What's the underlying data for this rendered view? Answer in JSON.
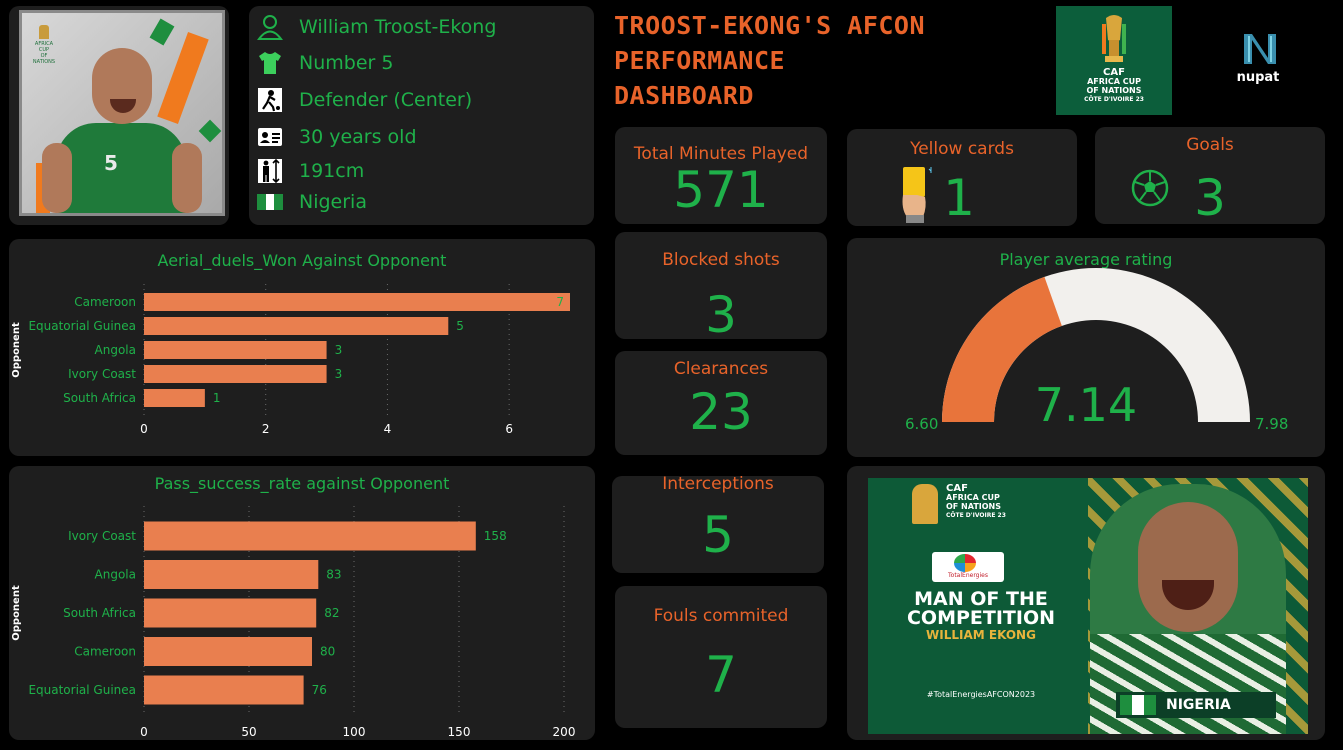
{
  "header": {
    "title_lines": [
      "TROOST-EKONG'S AFCON",
      "PERFORMANCE",
      "DASHBOARD"
    ],
    "afcon_logo_text": [
      "CAF",
      "AFRICA CUP",
      "OF NATIONS",
      "CÔTE D'IVOIRE 23"
    ],
    "sponsor_logo_text": "nupat"
  },
  "player": {
    "photo_logo_text": [
      "AFRICA CUP",
      "OF NATIONS"
    ],
    "jersey_number_badge": "5",
    "name": "William Troost-Ekong",
    "number": "Number 5",
    "position": "Defender (Center)",
    "age": "30 years old",
    "height": "191cm",
    "country": "Nigeria"
  },
  "kpis": {
    "minutes": {
      "label": "Total Minutes Played",
      "value": "571"
    },
    "yellow": {
      "label": "Yellow cards",
      "value": "1"
    },
    "goals": {
      "label": "Goals",
      "value": "3"
    },
    "blocked": {
      "label": "Blocked shots",
      "value": "3"
    },
    "clearances": {
      "label": "Clearances",
      "value": "23"
    },
    "interceptions": {
      "label": "Interceptions",
      "value": "5"
    },
    "fouls": {
      "label": "Fouls commited",
      "value": "7"
    }
  },
  "icons": {
    "name": "user-outline-icon",
    "number": "jersey-icon",
    "position": "defender-icon",
    "age": "id-card-icon",
    "height": "height-icon",
    "country": "nigeria-flag-icon",
    "yellow": "yellow-card-icon",
    "goals": "football-icon"
  },
  "colors": {
    "orange": "#e8632a",
    "green": "#1fb14a",
    "card": "#1e1e1e",
    "bar": "#e97f4f"
  },
  "gauge": {
    "title": "Player average rating",
    "min_label": "6.60",
    "max_label": "7.98",
    "value_label": "7.14"
  },
  "poster": {
    "logo_text": [
      "CAF",
      "AFRICA CUP",
      "OF NATIONS",
      "CÔTE D'IVOIRE 23"
    ],
    "sponsor": "TotalEnergies",
    "headline": [
      "MAN OF THE",
      "COMPETITION"
    ],
    "player_name": "WILLIAM EKONG",
    "hashtag": "#TotalEnergiesAFCON2023",
    "country": "NIGERIA"
  },
  "chart_data": [
    {
      "type": "bar",
      "orientation": "horizontal",
      "title": "Aerial_duels_Won Against Opponent",
      "ylabel": "Opponent",
      "xlabel": "",
      "categories": [
        "Cameroon",
        "Equatorial Guinea",
        "Angola",
        "Ivory Coast",
        "South Africa"
      ],
      "values": [
        7,
        5,
        3,
        3,
        1
      ],
      "xlim": [
        0,
        7
      ],
      "xticks": [
        0,
        2,
        4,
        6
      ],
      "grid": "vertical-dotted"
    },
    {
      "type": "bar",
      "orientation": "horizontal",
      "title": "Pass_success_rate against Opponent",
      "ylabel": "Opponent",
      "xlabel": "",
      "categories": [
        "Ivory Coast",
        "Angola",
        "South Africa",
        "Cameroon",
        "Equatorial Guinea"
      ],
      "values": [
        158,
        83,
        82,
        80,
        76
      ],
      "xlim": [
        0,
        200
      ],
      "xticks": [
        0,
        50,
        100,
        150,
        200
      ],
      "grid": "vertical-dotted"
    },
    {
      "type": "gauge",
      "title": "Player average rating",
      "min": 6.6,
      "max": 7.98,
      "value": 7.14
    }
  ]
}
